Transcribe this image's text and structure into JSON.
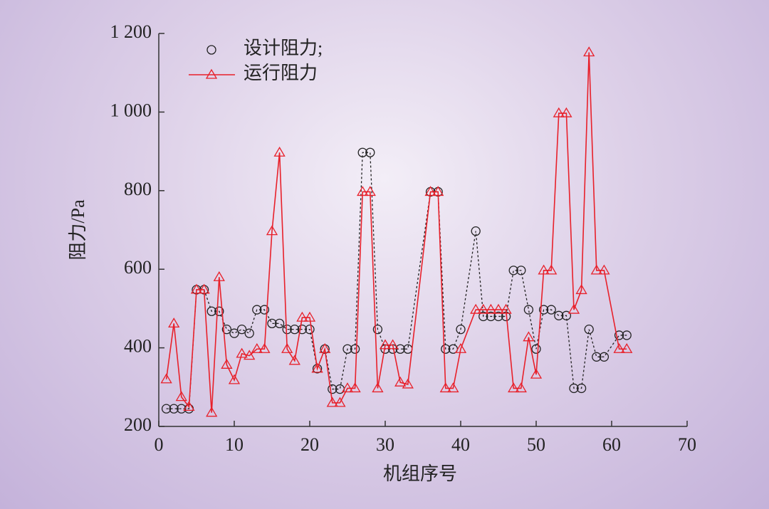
{
  "chart_data": {
    "type": "line",
    "x_label": "机组序号",
    "y_label": "阻力/Pa",
    "xlim": [
      0,
      70
    ],
    "xticks": [
      0,
      10,
      20,
      30,
      40,
      50,
      60,
      70
    ],
    "ylim": [
      200,
      1200
    ],
    "yticks": [
      200,
      400,
      600,
      800,
      {
        "value": 1000,
        "label": "1 000"
      },
      {
        "value": 1200,
        "label": "1 200"
      }
    ],
    "series": [
      {
        "name": "设计阻力;",
        "color": "#222222",
        "marker": "circle",
        "dash": true,
        "x": [
          1,
          2,
          3,
          4,
          5,
          6,
          7,
          8,
          9,
          10,
          11,
          12,
          13,
          14,
          15,
          16,
          17,
          18,
          19,
          20,
          21,
          22,
          23,
          24,
          25,
          26,
          27,
          28,
          29,
          30,
          31,
          32,
          33,
          36,
          37,
          38,
          39,
          40,
          42,
          43,
          44,
          45,
          46,
          47,
          48,
          49,
          50,
          51,
          52,
          53,
          54,
          55,
          56,
          57,
          58,
          59,
          61,
          62
        ],
        "values": [
          245,
          245,
          245,
          245,
          548,
          548,
          493,
          493,
          447,
          437,
          447,
          437,
          497,
          497,
          462,
          462,
          447,
          447,
          447,
          447,
          347,
          397,
          295,
          295,
          397,
          397,
          897,
          897,
          447,
          397,
          397,
          397,
          397,
          797,
          797,
          397,
          397,
          447,
          697,
          480,
          480,
          480,
          480,
          597,
          597,
          497,
          397,
          497,
          497,
          482,
          482,
          297,
          297,
          447,
          377,
          377,
          432,
          432
        ]
      },
      {
        "name": "运行阻力",
        "color": "#e8202a",
        "marker": "triangle",
        "dash": false,
        "x": [
          1,
          2,
          3,
          4,
          5,
          6,
          7,
          8,
          9,
          10,
          11,
          12,
          13,
          14,
          15,
          16,
          17,
          18,
          19,
          20,
          21,
          22,
          23,
          24,
          25,
          26,
          27,
          28,
          29,
          30,
          31,
          32,
          33,
          36,
          37,
          38,
          39,
          40,
          42,
          43,
          44,
          45,
          46,
          47,
          48,
          49,
          50,
          51,
          52,
          53,
          54,
          55,
          56,
          57,
          58,
          59,
          61,
          62
        ],
        "values": [
          320,
          462,
          275,
          250,
          548,
          548,
          235,
          580,
          357,
          318,
          385,
          380,
          397,
          397,
          697,
          897,
          397,
          367,
          477,
          477,
          347,
          397,
          260,
          260,
          297,
          297,
          797,
          797,
          297,
          407,
          407,
          312,
          307,
          797,
          797,
          297,
          297,
          397,
          497,
          497,
          497,
          497,
          497,
          297,
          297,
          427,
          332,
          597,
          597,
          997,
          997,
          497,
          547,
          1152,
          597,
          597,
          397,
          397
        ]
      }
    ]
  }
}
